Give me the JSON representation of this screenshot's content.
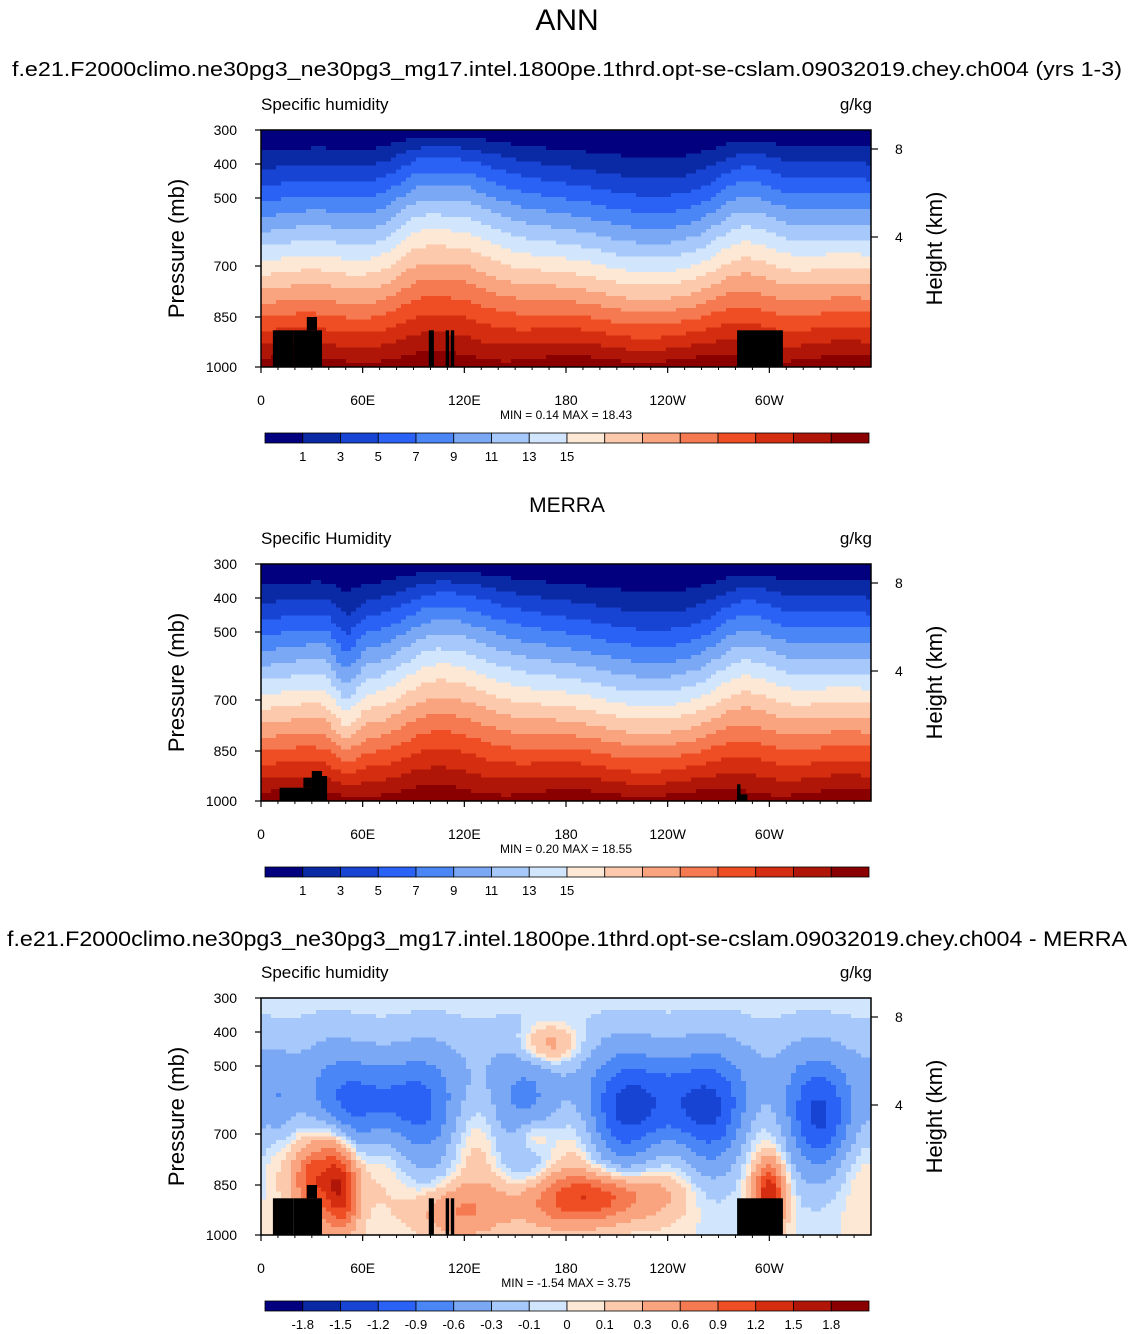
{
  "figure": {
    "title": "ANN",
    "subtitle": "f.e21.F2000climo.ne30pg3_ne30pg3_mg17.intel.1800pe.1thrd.opt-se-cslam.09032019.chey.ch004 (yrs 1-3)"
  },
  "chart_data": [
    {
      "type": "heatmap",
      "panel_title": "",
      "left_label": "Specific humidity",
      "right_label": "g/kg",
      "ylabel": "Pressure (mb)",
      "y2label": "Height (km)",
      "x_ticks": [
        "0",
        "60E",
        "120E",
        "180",
        "120W",
        "60W"
      ],
      "y_ticks": [
        "300",
        "400",
        "500",
        "700",
        "850",
        "1000"
      ],
      "y2_ticks": [
        "8",
        "4"
      ],
      "stats": "MIN =   0.14  MAX =  18.43",
      "xlim": [
        0,
        360
      ],
      "ylim": [
        1000,
        300
      ],
      "colorbar_labels": [
        "1",
        "3",
        "5",
        "7",
        "9",
        "11",
        "13",
        "15"
      ],
      "colors": [
        "#02007f",
        "#0a29a5",
        "#1844d4",
        "#2962f5",
        "#4a86f5",
        "#7aa8f5",
        "#a7c8fb",
        "#d1e5fc",
        "#fde8d5",
        "#fcc9ac",
        "#f9a37f",
        "#f57a52",
        "#ef4d23",
        "#d42d10",
        "#b01607",
        "#8a0000"
      ],
      "kind": "model"
    },
    {
      "type": "heatmap",
      "panel_title": "MERRA",
      "left_label": "Specific Humidity",
      "right_label": "g/kg",
      "ylabel": "Pressure (mb)",
      "y2label": "Height (km)",
      "x_ticks": [
        "0",
        "60E",
        "120E",
        "180",
        "120W",
        "60W"
      ],
      "y_ticks": [
        "300",
        "400",
        "500",
        "700",
        "850",
        "1000"
      ],
      "y2_ticks": [
        "8",
        "4"
      ],
      "stats": "MIN =   0.20  MAX =  18.55",
      "xlim": [
        0,
        360
      ],
      "ylim": [
        1000,
        300
      ],
      "colorbar_labels": [
        "1",
        "3",
        "5",
        "7",
        "9",
        "11",
        "13",
        "15"
      ],
      "colors": [
        "#02007f",
        "#0a29a5",
        "#1844d4",
        "#2962f5",
        "#4a86f5",
        "#7aa8f5",
        "#a7c8fb",
        "#d1e5fc",
        "#fde8d5",
        "#fcc9ac",
        "#f9a37f",
        "#f57a52",
        "#ef4d23",
        "#d42d10",
        "#b01607",
        "#8a0000"
      ],
      "kind": "obs"
    },
    {
      "type": "heatmap",
      "panel_title": "f.e21.F2000climo.ne30pg3_ne30pg3_mg17.intel.1800pe.1thrd.opt-se-cslam.09032019.chey.ch004 - MERRA",
      "left_label": "Specific humidity",
      "right_label": "g/kg",
      "ylabel": "Pressure (mb)",
      "y2label": "Height (km)",
      "x_ticks": [
        "0",
        "60E",
        "120E",
        "180",
        "120W",
        "60W"
      ],
      "y_ticks": [
        "300",
        "400",
        "500",
        "700",
        "850",
        "1000"
      ],
      "y2_ticks": [
        "8",
        "4"
      ],
      "stats": "MIN =  -1.54  MAX =   3.75",
      "xlim": [
        0,
        360
      ],
      "ylim": [
        1000,
        300
      ],
      "colorbar_labels": [
        "-1.8",
        "-1.5",
        "-1.2",
        "-0.9",
        "-0.6",
        "-0.3",
        "-0.1",
        "0",
        "0.1",
        "0.3",
        "0.6",
        "0.9",
        "1.2",
        "1.5",
        "1.8"
      ],
      "colors": [
        "#02007f",
        "#0a29a5",
        "#1844d4",
        "#2962f5",
        "#4a86f5",
        "#7aa8f5",
        "#a7c8fb",
        "#d1e5fc",
        "#fde8d5",
        "#fcc9ac",
        "#f9a37f",
        "#f57a52",
        "#ef4d23",
        "#d42d10",
        "#b01607",
        "#8a0000"
      ],
      "kind": "diff"
    }
  ]
}
